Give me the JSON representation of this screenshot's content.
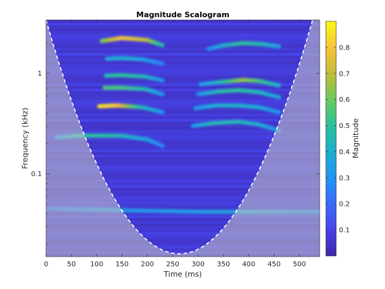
{
  "chart_data": {
    "type": "heatmap",
    "title": "Magnitude Scalogram",
    "xlabel": "Time (ms)",
    "ylabel": "Frequency (kHz)",
    "colorbar_label": "Magnitude",
    "x_range": [
      0,
      540
    ],
    "y_range_khz": [
      0.015,
      3.4
    ],
    "y_scale": "log",
    "x_ticks": [
      0,
      50,
      100,
      150,
      200,
      250,
      300,
      350,
      400,
      450,
      500
    ],
    "x_tick_labels": [
      "0",
      "50",
      "100",
      "150",
      "200",
      "250",
      "300",
      "350",
      "400",
      "450",
      "500"
    ],
    "y_ticks": [
      0.1,
      1
    ],
    "y_tick_labels": [
      "0.1",
      "1"
    ],
    "colorbar_range": [
      0,
      0.9
    ],
    "colorbar_ticks": [
      0.1,
      0.2,
      0.3,
      0.4,
      0.5,
      0.6,
      0.7,
      0.8
    ],
    "colorbar_tick_labels": [
      "0.1",
      "0.2",
      "0.3",
      "0.4",
      "0.5",
      "0.6",
      "0.7",
      "0.8"
    ],
    "colormap": [
      "#3e26a8",
      "#4743e8",
      "#3c6bfe",
      "#2394f0",
      "#1faecf",
      "#2cc19a",
      "#6cc95f",
      "#c0bc3c",
      "#f8c43a",
      "#f9fb14"
    ],
    "background_magnitude": 0.05,
    "harmonic_bands": [
      {
        "t": [
          105,
          140,
          190,
          230
        ],
        "f_khz": [
          0.47,
          0.48,
          0.46,
          0.41
        ],
        "magnitude": [
          0.85,
          0.82,
          0.45,
          0.3
        ]
      },
      {
        "t": [
          115,
          150,
          195,
          230
        ],
        "f_khz": [
          0.72,
          0.72,
          0.7,
          0.62
        ],
        "magnitude": [
          0.55,
          0.55,
          0.45,
          0.3
        ]
      },
      {
        "t": [
          118,
          150,
          195,
          230
        ],
        "f_khz": [
          0.95,
          0.96,
          0.93,
          0.85
        ],
        "magnitude": [
          0.45,
          0.5,
          0.45,
          0.3
        ]
      },
      {
        "t": [
          120,
          150,
          190,
          230
        ],
        "f_khz": [
          1.4,
          1.42,
          1.38,
          1.25
        ],
        "magnitude": [
          0.35,
          0.4,
          0.35,
          0.25
        ]
      },
      {
        "t": [
          110,
          150,
          200,
          230
        ],
        "f_khz": [
          2.1,
          2.25,
          2.15,
          1.9
        ],
        "magnitude": [
          0.6,
          0.8,
          0.7,
          0.45
        ]
      },
      {
        "t": [
          20,
          60,
          100,
          150,
          200,
          230
        ],
        "f_khz": [
          0.23,
          0.24,
          0.24,
          0.24,
          0.22,
          0.19
        ],
        "magnitude": [
          0.3,
          0.45,
          0.5,
          0.45,
          0.35,
          0.25
        ]
      },
      {
        "t": [
          290,
          330,
          380,
          420,
          460
        ],
        "f_khz": [
          0.3,
          0.32,
          0.33,
          0.31,
          0.27
        ],
        "magnitude": [
          0.3,
          0.45,
          0.45,
          0.4,
          0.3
        ]
      },
      {
        "t": [
          295,
          335,
          380,
          420,
          460
        ],
        "f_khz": [
          0.45,
          0.48,
          0.48,
          0.46,
          0.41
        ],
        "magnitude": [
          0.3,
          0.4,
          0.42,
          0.38,
          0.3
        ]
      },
      {
        "t": [
          300,
          340,
          380,
          420,
          460
        ],
        "f_khz": [
          0.62,
          0.66,
          0.68,
          0.65,
          0.58
        ],
        "magnitude": [
          0.3,
          0.45,
          0.5,
          0.45,
          0.35
        ]
      },
      {
        "t": [
          305,
          345,
          390,
          420,
          460
        ],
        "f_khz": [
          0.78,
          0.82,
          0.86,
          0.84,
          0.76
        ],
        "magnitude": [
          0.3,
          0.45,
          0.65,
          0.55,
          0.4
        ]
      },
      {
        "t": [
          320,
          350,
          390,
          430,
          460
        ],
        "f_khz": [
          1.75,
          1.9,
          2.0,
          1.95,
          1.85
        ],
        "magnitude": [
          0.25,
          0.4,
          0.5,
          0.45,
          0.35
        ]
      },
      {
        "t": [
          0,
          100,
          200,
          300,
          400,
          540
        ],
        "f_khz": [
          0.045,
          0.044,
          0.043,
          0.042,
          0.042,
          0.042
        ],
        "magnitude": [
          0.22,
          0.3,
          0.32,
          0.33,
          0.35,
          0.3
        ]
      }
    ],
    "cone_of_influence": {
      "t_center": 263,
      "f_min_khz": 0.016
    }
  }
}
